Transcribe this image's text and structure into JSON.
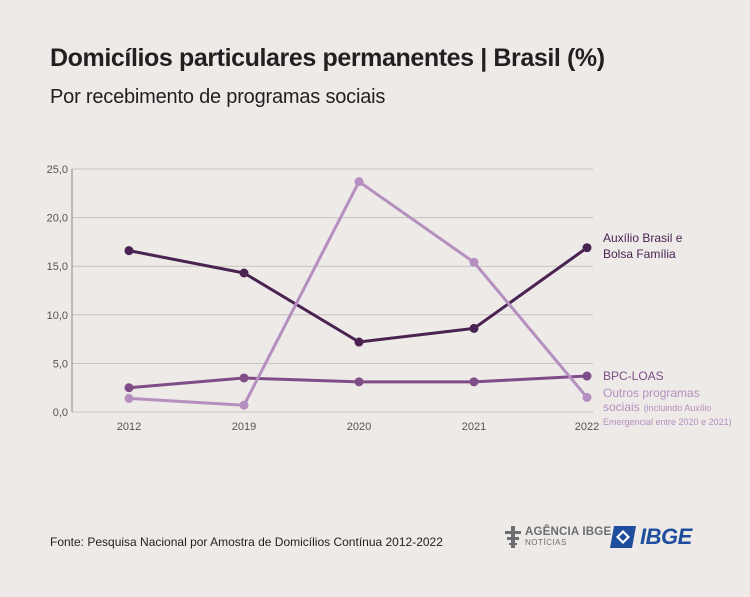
{
  "header": {
    "title": "Domicílios particulares permanentes | Brasil (%)",
    "subtitle": "Por recebimento de programas sociais"
  },
  "chart_data": {
    "type": "line",
    "categories": [
      "2012",
      "2019",
      "2020",
      "2021",
      "2022"
    ],
    "ylim": [
      0,
      25
    ],
    "yticks": [
      "0,0",
      "5,0",
      "10,0",
      "15,0",
      "20,0",
      "25,0"
    ],
    "grid": true,
    "series": [
      {
        "name": "Auxílio Brasil e Bolsa Família",
        "label_lines": [
          "Auxílio Brasil e",
          "Bolsa Família"
        ],
        "color": "#4a2352",
        "values": [
          16.6,
          14.3,
          7.2,
          8.6,
          16.9
        ]
      },
      {
        "name": "BPC-LOAS",
        "label_lines": [
          "BPC-LOAS"
        ],
        "color": "#7f4d88",
        "values": [
          2.5,
          3.5,
          3.1,
          3.1,
          3.7
        ]
      },
      {
        "name": "Outros programas sociais (incluindo Auxílio Emergencial entre 2020 e 2021)",
        "label_lines": [
          "Outros programas",
          "sociais",
          "(incluindo Auxílio",
          "Emergencial entre 2020 e 2021)"
        ],
        "color": "#b58fbf",
        "values": [
          1.4,
          0.7,
          23.7,
          15.4,
          1.5
        ]
      }
    ]
  },
  "footer": {
    "source": "Fonte: Pesquisa Nacional por Amostra de Domicílios Contínua 2012-2022",
    "agencia_logo_top": "AGÊNCIA IBGE",
    "agencia_logo_bottom": "NOTÍCIAS",
    "ibge_logo": "IBGE",
    "logo_gray": "#6d6e71",
    "logo_blue": "#1f4e9c"
  }
}
